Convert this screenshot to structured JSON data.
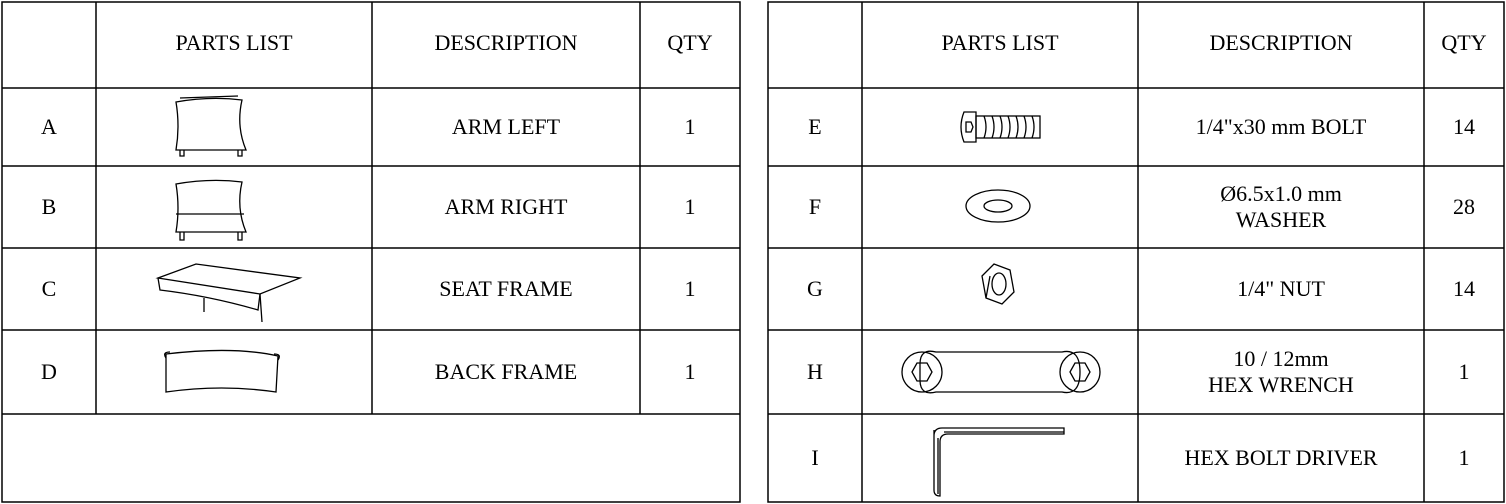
{
  "left_table": {
    "headers": [
      "PARTS LIST",
      "DESCRIPTION",
      "QTY"
    ],
    "rows": [
      {
        "id": "A",
        "description": [
          "ARM LEFT"
        ],
        "qty": 1
      },
      {
        "id": "B",
        "description": [
          "ARM RIGHT"
        ],
        "qty": 1
      },
      {
        "id": "C",
        "description": [
          "SEAT FRAME"
        ],
        "qty": 1
      },
      {
        "id": "D",
        "description": [
          "BACK FRAME"
        ],
        "qty": 1
      }
    ]
  },
  "right_table": {
    "headers": [
      "PARTS LIST",
      "DESCRIPTION",
      "QTY"
    ],
    "rows": [
      {
        "id": "E",
        "description": [
          "1/4\"x30 mm BOLT"
        ],
        "qty": 14
      },
      {
        "id": "F",
        "description": [
          "Ø6.5x1.0 mm",
          "WASHER"
        ],
        "qty": 28
      },
      {
        "id": "G",
        "description": [
          "1/4\" NUT"
        ],
        "qty": 14
      },
      {
        "id": "H",
        "description": [
          "10 / 12mm",
          "HEX WRENCH"
        ],
        "qty": 1
      },
      {
        "id": "I",
        "description": [
          "HEX BOLT DRIVER"
        ],
        "qty": 1
      }
    ]
  }
}
